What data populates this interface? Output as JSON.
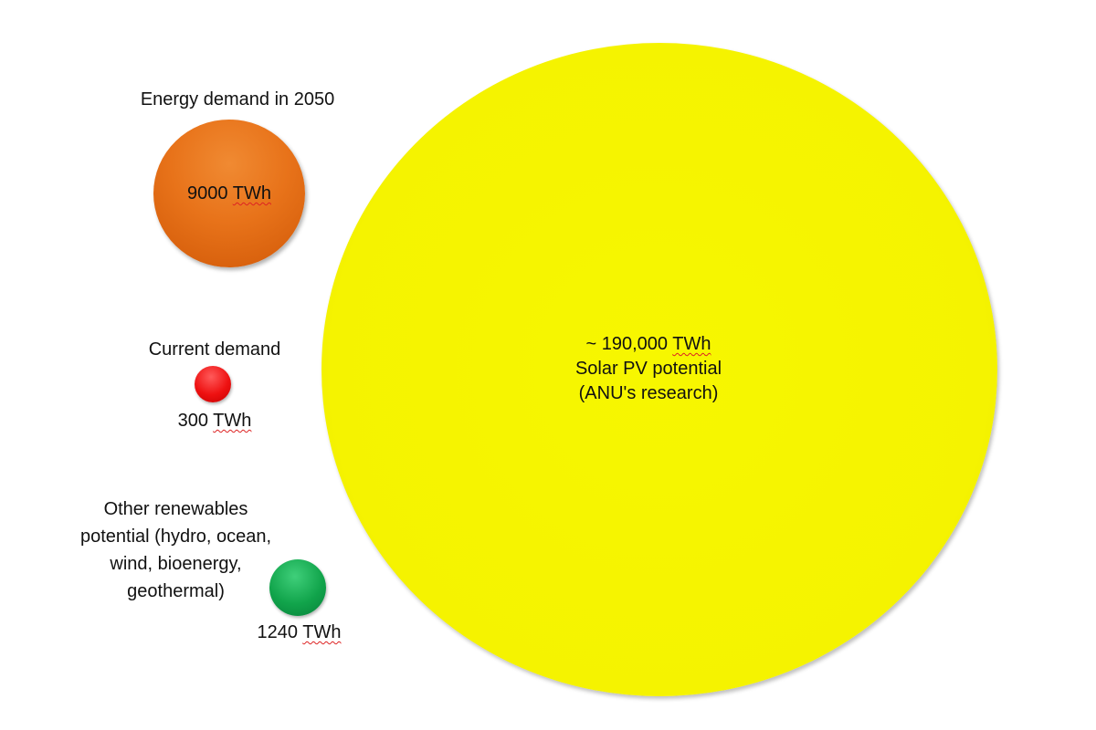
{
  "solar": {
    "value": "~ 190,000",
    "unit": "TWh",
    "line2": "Solar PV potential",
    "line3": "(ANU's research)",
    "color": "#f5f300"
  },
  "demand_2050": {
    "title": "Energy demand in 2050",
    "value": "9000",
    "unit": "TWh",
    "color": "#e8731a"
  },
  "current_demand": {
    "title": "Current demand",
    "value": "300",
    "unit": "TWh",
    "color": "#ee1111"
  },
  "other_renewables": {
    "title_lines": [
      "Other renewables",
      "potential (hydro, ocean,",
      "wind, bioenergy,",
      "geothermal)"
    ],
    "value": "1240",
    "unit": "TWh",
    "color": "#11a44b"
  }
}
